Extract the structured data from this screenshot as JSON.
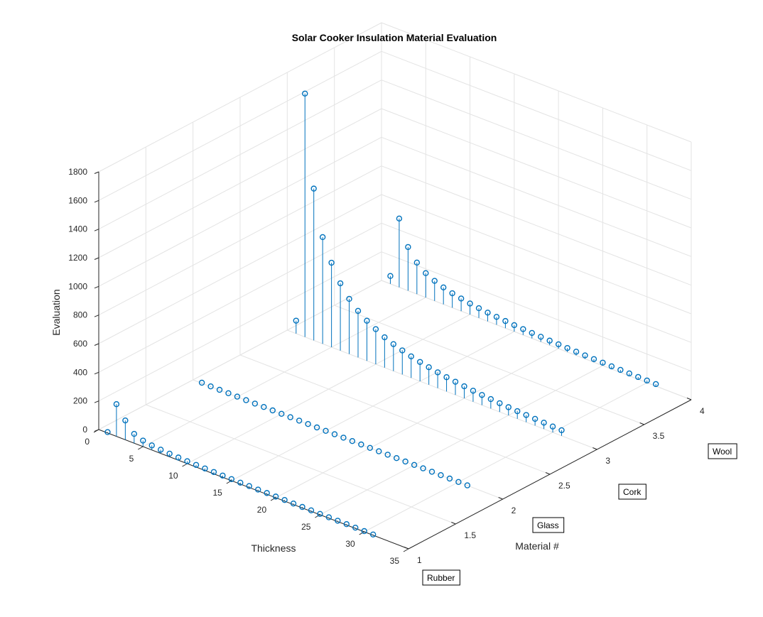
{
  "chart_data": {
    "type": "stem3",
    "title": "Solar Cooker Insulation Material Evaluation",
    "xlabel": "Thickness",
    "ylabel": "Material #",
    "zlabel": "Evaluation",
    "xlim": [
      0,
      35
    ],
    "ylim": [
      1,
      4
    ],
    "zlim": [
      0,
      1800
    ],
    "xticks": [
      "0",
      "5",
      "10",
      "15",
      "20",
      "25",
      "30",
      "35"
    ],
    "yticks": [
      "1",
      "1.5",
      "2",
      "2.5",
      "3",
      "3.5",
      "4"
    ],
    "zticks": [
      "0",
      "200",
      "400",
      "600",
      "800",
      "1000",
      "1200",
      "1400",
      "1600",
      "1800"
    ],
    "x": [
      1,
      2,
      3,
      4,
      5,
      6,
      7,
      8,
      9,
      10,
      11,
      12,
      13,
      14,
      15,
      16,
      17,
      18,
      19,
      20,
      21,
      22,
      23,
      24,
      25,
      26,
      27,
      28,
      29,
      30,
      31
    ],
    "series": [
      {
        "material": 1,
        "values": [
          6,
          225,
          135,
          65,
          42,
          32,
          26,
          22,
          19,
          17,
          15,
          14,
          13,
          12,
          11,
          10,
          10,
          9,
          9,
          8,
          8,
          7,
          7,
          7,
          6,
          6,
          6,
          6,
          5,
          5,
          5
        ]
      },
      {
        "material": 2,
        "values": [
          4,
          2,
          2,
          2,
          2,
          1,
          1,
          1,
          1,
          1,
          1,
          1,
          1,
          1,
          1,
          1,
          1,
          1,
          1,
          1,
          1,
          1,
          1,
          1,
          1,
          1,
          1,
          1,
          1,
          1,
          1
        ]
      },
      {
        "material": 3,
        "values": [
          90,
          1700,
          1060,
          745,
          590,
          470,
          385,
          325,
          280,
          245,
          212,
          188,
          168,
          150,
          135,
          122,
          110,
          100,
          92,
          84,
          77,
          71,
          66,
          61,
          57,
          53,
          50,
          47,
          44,
          41,
          39
        ]
      },
      {
        "material": 4,
        "values": [
          55,
          480,
          305,
          220,
          170,
          140,
          118,
          101,
          88,
          77,
          68,
          61,
          55,
          50,
          45,
          41,
          38,
          35,
          32,
          30,
          28,
          26,
          24,
          22,
          21,
          19,
          18,
          17,
          16,
          15,
          14
        ]
      }
    ],
    "annotations": [
      {
        "text": "Rubber",
        "material": 1
      },
      {
        "text": "Glass",
        "material": 2
      },
      {
        "text": "Cork",
        "material": 3
      },
      {
        "text": "Wool",
        "material": 4
      }
    ],
    "colors": {
      "stem": "#0072bd",
      "grid": "#e3e3e3",
      "axis": "#262626",
      "background": "#ffffff"
    },
    "grid": true
  }
}
